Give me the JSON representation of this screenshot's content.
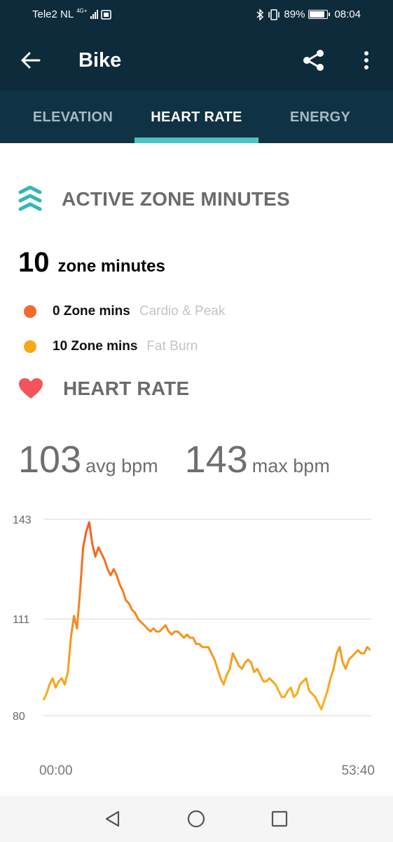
{
  "status_bar": {
    "carrier": "Tele2 NL",
    "network": "4G+",
    "battery": "89%",
    "battery_level": 0.89,
    "time": "08:04"
  },
  "app_bar": {
    "title": "Bike",
    "icons": [
      "arrow-back-icon",
      "share-icon",
      "more-vert-icon"
    ]
  },
  "tabs": [
    {
      "label": "ELEVATION",
      "active": false
    },
    {
      "label": "HEART RATE",
      "active": true
    },
    {
      "label": "ENERGY",
      "active": false
    }
  ],
  "active_zone": {
    "heading": "ACTIVE ZONE MINUTES",
    "total": "10",
    "total_unit": "zone minutes",
    "zones": [
      {
        "mins": "0 Zone mins",
        "type": "Cardio & Peak",
        "color": "#f26b2b"
      },
      {
        "mins": "10 Zone mins",
        "type": "Fat Burn",
        "color": "#f5a915"
      }
    ]
  },
  "heart_rate": {
    "heading": "HEART RATE",
    "avg": "103",
    "avg_unit": "avg bpm",
    "max": "143",
    "max_unit": "max bpm"
  },
  "chart_data": {
    "type": "line",
    "x_start_label": "00:00",
    "x_end_label": "53:40",
    "xlim": [
      0,
      53.67
    ],
    "ylim": [
      80,
      143
    ],
    "y_ticks": [
      80,
      111,
      143
    ],
    "xlabel": "",
    "ylabel": "",
    "grid": true,
    "legend": "none",
    "color_low": "#f9b618",
    "color_high": "#f15a24",
    "x": [
      0,
      0.5,
      1,
      1.5,
      2,
      2.5,
      3,
      3.5,
      4,
      4.5,
      5,
      5.5,
      6,
      6.5,
      7,
      7.5,
      8,
      8.5,
      9,
      9.5,
      10,
      10.5,
      11,
      11.5,
      12,
      12.5,
      13,
      13.5,
      14,
      14.5,
      15,
      15.5,
      16,
      16.5,
      17,
      17.5,
      18,
      18.5,
      19,
      19.5,
      20,
      20.5,
      21,
      21.5,
      22,
      22.5,
      23,
      23.5,
      24,
      24.5,
      25,
      25.5,
      26,
      26.5,
      27,
      27.5,
      28,
      28.5,
      29,
      29.5,
      30,
      30.5,
      31,
      31.5,
      32,
      32.5,
      33,
      33.5,
      34,
      34.5,
      35,
      35.5,
      36,
      36.5,
      37,
      37.5,
      38,
      38.5,
      39,
      39.5,
      40,
      40.5,
      41,
      41.5,
      42,
      42.5,
      43,
      43.5,
      44,
      44.5,
      45,
      45.5,
      46,
      46.5,
      47,
      47.5,
      48,
      48.5,
      49,
      49.5,
      50,
      50.5,
      51,
      51.5,
      52,
      52.5,
      53,
      53.5
    ],
    "values": [
      85,
      87,
      90,
      92,
      89,
      91,
      92,
      90,
      94,
      105,
      112,
      108,
      120,
      134,
      139,
      142,
      135,
      131,
      134,
      132,
      130,
      127,
      125,
      127,
      125,
      122,
      120,
      117,
      116,
      114,
      113,
      111,
      110,
      109,
      108,
      107,
      108,
      107,
      107,
      108,
      109,
      107,
      106,
      107,
      107,
      106,
      105,
      106,
      105,
      105,
      103,
      103,
      102,
      102,
      102,
      100,
      98,
      95,
      92,
      90,
      93,
      95,
      100,
      98,
      96,
      95,
      97,
      98,
      97,
      94,
      95,
      93,
      91,
      91,
      92,
      91,
      90,
      88,
      86,
      86,
      88,
      89,
      86,
      87,
      90,
      91,
      92,
      88,
      87,
      86,
      84,
      82,
      85,
      88,
      92,
      95,
      100,
      102,
      97,
      95,
      98,
      99,
      100,
      101,
      100,
      100,
      102,
      101
    ]
  },
  "nav_bar": {
    "icons": [
      "back-triangle-icon",
      "home-circle-icon",
      "recents-square-icon"
    ]
  }
}
